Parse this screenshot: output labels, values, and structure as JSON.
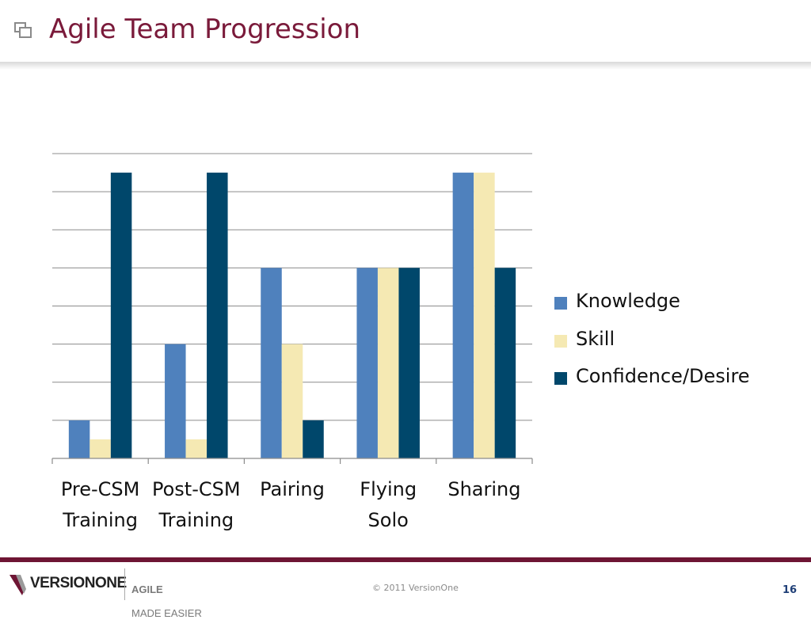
{
  "slide": {
    "title": "Agile Team Progression",
    "icon": "slide-frame-icon"
  },
  "footer": {
    "logo_text": "VERSIONONE",
    "tagline_line1": "AGILE",
    "tagline_line2": "MADE EASIER",
    "copyright": "© 2011 VersionOne",
    "page_number": "16",
    "accent_color": "#6e1534"
  },
  "chart_data": {
    "type": "bar",
    "categories": [
      [
        "Pre-CSM",
        "Training"
      ],
      [
        "Post-CSM",
        "Training"
      ],
      [
        "Pairing"
      ],
      [
        "Flying",
        "Solo"
      ],
      [
        "Sharing"
      ]
    ],
    "series": [
      {
        "name": "Knowledge",
        "color": "#4f81bd",
        "values": [
          1,
          3,
          5,
          5,
          7.5
        ]
      },
      {
        "name": "Skill",
        "color": "#f5e9b3",
        "values": [
          0.5,
          0.5,
          3,
          5,
          7.5
        ]
      },
      {
        "name": "Confidence/Desire",
        "color": "#00476b",
        "values": [
          7.5,
          7.5,
          1,
          5,
          5
        ]
      }
    ],
    "ylim": [
      0,
      8
    ],
    "grid": true,
    "y_tick_labels": false,
    "legend_placement": "right",
    "title": "",
    "xlabel": "",
    "ylabel": ""
  }
}
